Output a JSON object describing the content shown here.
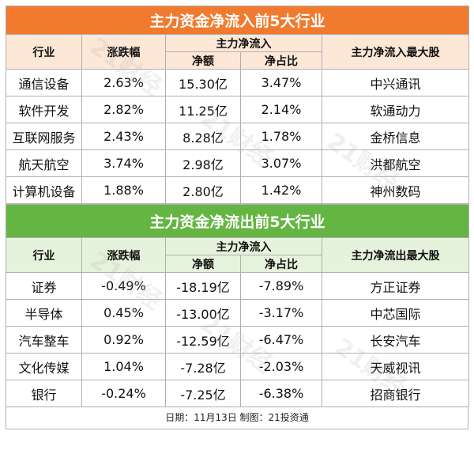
{
  "inflow": {
    "title": "主力资金净流入前5大行业",
    "headers": {
      "industry": "行业",
      "change": "涨跌幅",
      "main": "主力净流入",
      "amount": "净额",
      "ratio": "净占比",
      "top_stock": "主力净流入最大股"
    },
    "rows": [
      {
        "industry": "通信设备",
        "change": "2.63%",
        "amount": "15.30亿",
        "ratio": "3.47%",
        "stock": "中兴通讯"
      },
      {
        "industry": "软件开发",
        "change": "2.82%",
        "amount": "11.25亿",
        "ratio": "2.14%",
        "stock": "软通动力"
      },
      {
        "industry": "互联网服务",
        "change": "2.43%",
        "amount": "8.28亿",
        "ratio": "1.78%",
        "stock": "金桥信息"
      },
      {
        "industry": "航天航空",
        "change": "3.74%",
        "amount": "2.98亿",
        "ratio": "3.07%",
        "stock": "洪都航空"
      },
      {
        "industry": "计算机设备",
        "change": "1.88%",
        "amount": "2.80亿",
        "ratio": "1.42%",
        "stock": "神州数码"
      }
    ]
  },
  "outflow": {
    "title": "主力资金净流出前5大行业",
    "headers": {
      "industry": "行业",
      "change": "涨跌幅",
      "main": "主力净流入",
      "amount": "净额",
      "ratio": "净占比",
      "top_stock": "主力净流出最大股"
    },
    "rows": [
      {
        "industry": "证券",
        "change": "-0.49%",
        "amount": "-18.19亿",
        "ratio": "-7.89%",
        "stock": "方正证券"
      },
      {
        "industry": "半导体",
        "change": "0.45%",
        "amount": "-13.00亿",
        "ratio": "-3.17%",
        "stock": "中芯国际"
      },
      {
        "industry": "汽车整车",
        "change": "0.92%",
        "amount": "-12.59亿",
        "ratio": "-6.47%",
        "stock": "长安汽车"
      },
      {
        "industry": "文化传媒",
        "change": "1.04%",
        "amount": "-7.28亿",
        "ratio": "-2.03%",
        "stock": "天威视讯"
      },
      {
        "industry": "银行",
        "change": "-0.24%",
        "amount": "-7.25亿",
        "ratio": "-6.38%",
        "stock": "招商银行"
      }
    ]
  },
  "footer": "日期：11月13日 制图：21投资通",
  "watermark": "21财经",
  "colors": {
    "inflow_band": "#f07a2e",
    "outflow_band": "#65b542",
    "inflow_header": "#fde7d6",
    "outflow_header": "#e5f2dc"
  }
}
